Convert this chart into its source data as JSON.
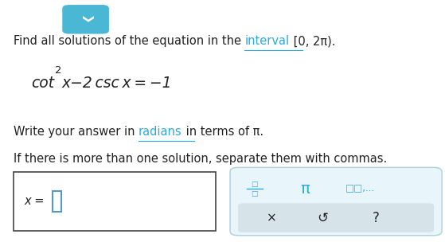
{
  "bg_color": "#ffffff",
  "text_color": "#222222",
  "teal_color": "#29abe2",
  "teal_light_bg": "#e8f6fb",
  "gray_bg": "#d6e4ea",
  "chevron_color": "#4ab8d4",
  "input_box_color": "#5599cc",
  "font_size_main": 10.5,
  "font_size_eq": 13.5,
  "line1_pre": "Find all solutions of the equation in the ",
  "line1_link": "interval",
  "line1_post": " [0, 2π).",
  "eq_pre": "cot",
  "eq_sup": "2",
  "eq_post": "x−2 csc x = −1",
  "line3_pre": "Write your answer in ",
  "line3_link": "radians",
  "line3_post": " in terms of π.",
  "line4": "If there is more than one solution, separate them with commas."
}
